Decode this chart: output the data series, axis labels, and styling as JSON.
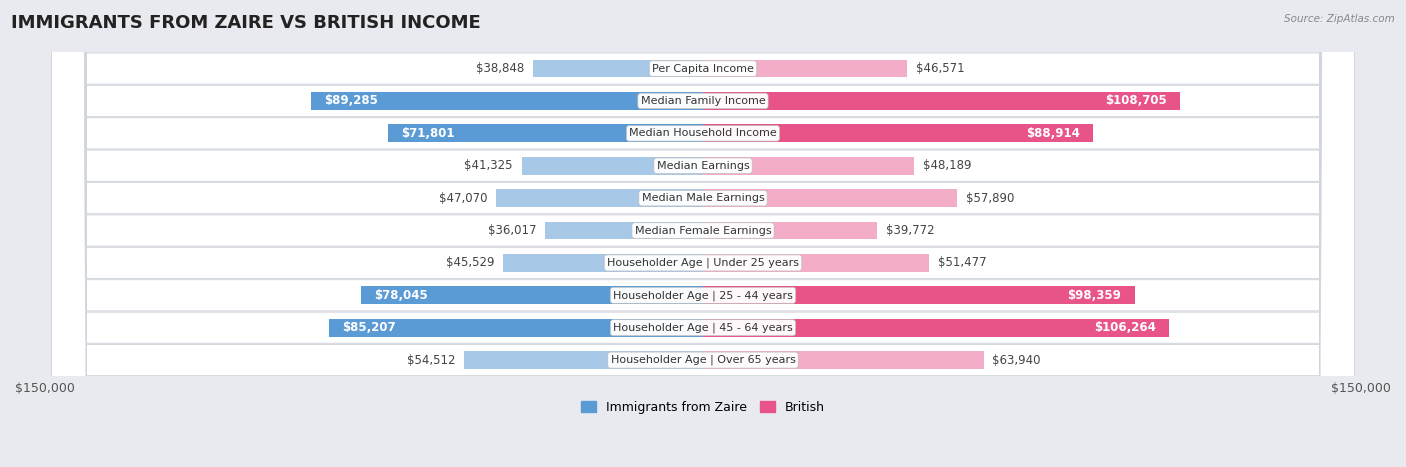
{
  "title": "IMMIGRANTS FROM ZAIRE VS BRITISH INCOME",
  "source": "Source: ZipAtlas.com",
  "categories": [
    "Per Capita Income",
    "Median Family Income",
    "Median Household Income",
    "Median Earnings",
    "Median Male Earnings",
    "Median Female Earnings",
    "Householder Age | Under 25 years",
    "Householder Age | 25 - 44 years",
    "Householder Age | 45 - 64 years",
    "Householder Age | Over 65 years"
  ],
  "zaire_values": [
    38848,
    89285,
    71801,
    41325,
    47070,
    36017,
    45529,
    78045,
    85207,
    54512
  ],
  "british_values": [
    46571,
    108705,
    88914,
    48189,
    57890,
    39772,
    51477,
    98359,
    106264,
    63940
  ],
  "zaire_labels": [
    "$38,848",
    "$89,285",
    "$71,801",
    "$41,325",
    "$47,070",
    "$36,017",
    "$45,529",
    "$78,045",
    "$85,207",
    "$54,512"
  ],
  "british_labels": [
    "$46,571",
    "$108,705",
    "$88,914",
    "$48,189",
    "$57,890",
    "$39,772",
    "$51,477",
    "$98,359",
    "$106,264",
    "$63,940"
  ],
  "zaire_color_light": "#a8c8e8",
  "zaire_color_dark": "#5b9bd5",
  "british_color_light": "#f4adc8",
  "british_color_dark": "#e8538a",
  "max_value": 150000,
  "big_threshold": 65000,
  "legend_zaire": "Immigrants from Zaire",
  "legend_british": "British",
  "title_fontsize": 13,
  "label_fontsize": 8.5,
  "category_fontsize": 8.0,
  "row_colors": [
    "#f2f4f7",
    "#e8eaef"
  ],
  "white": "#ffffff"
}
